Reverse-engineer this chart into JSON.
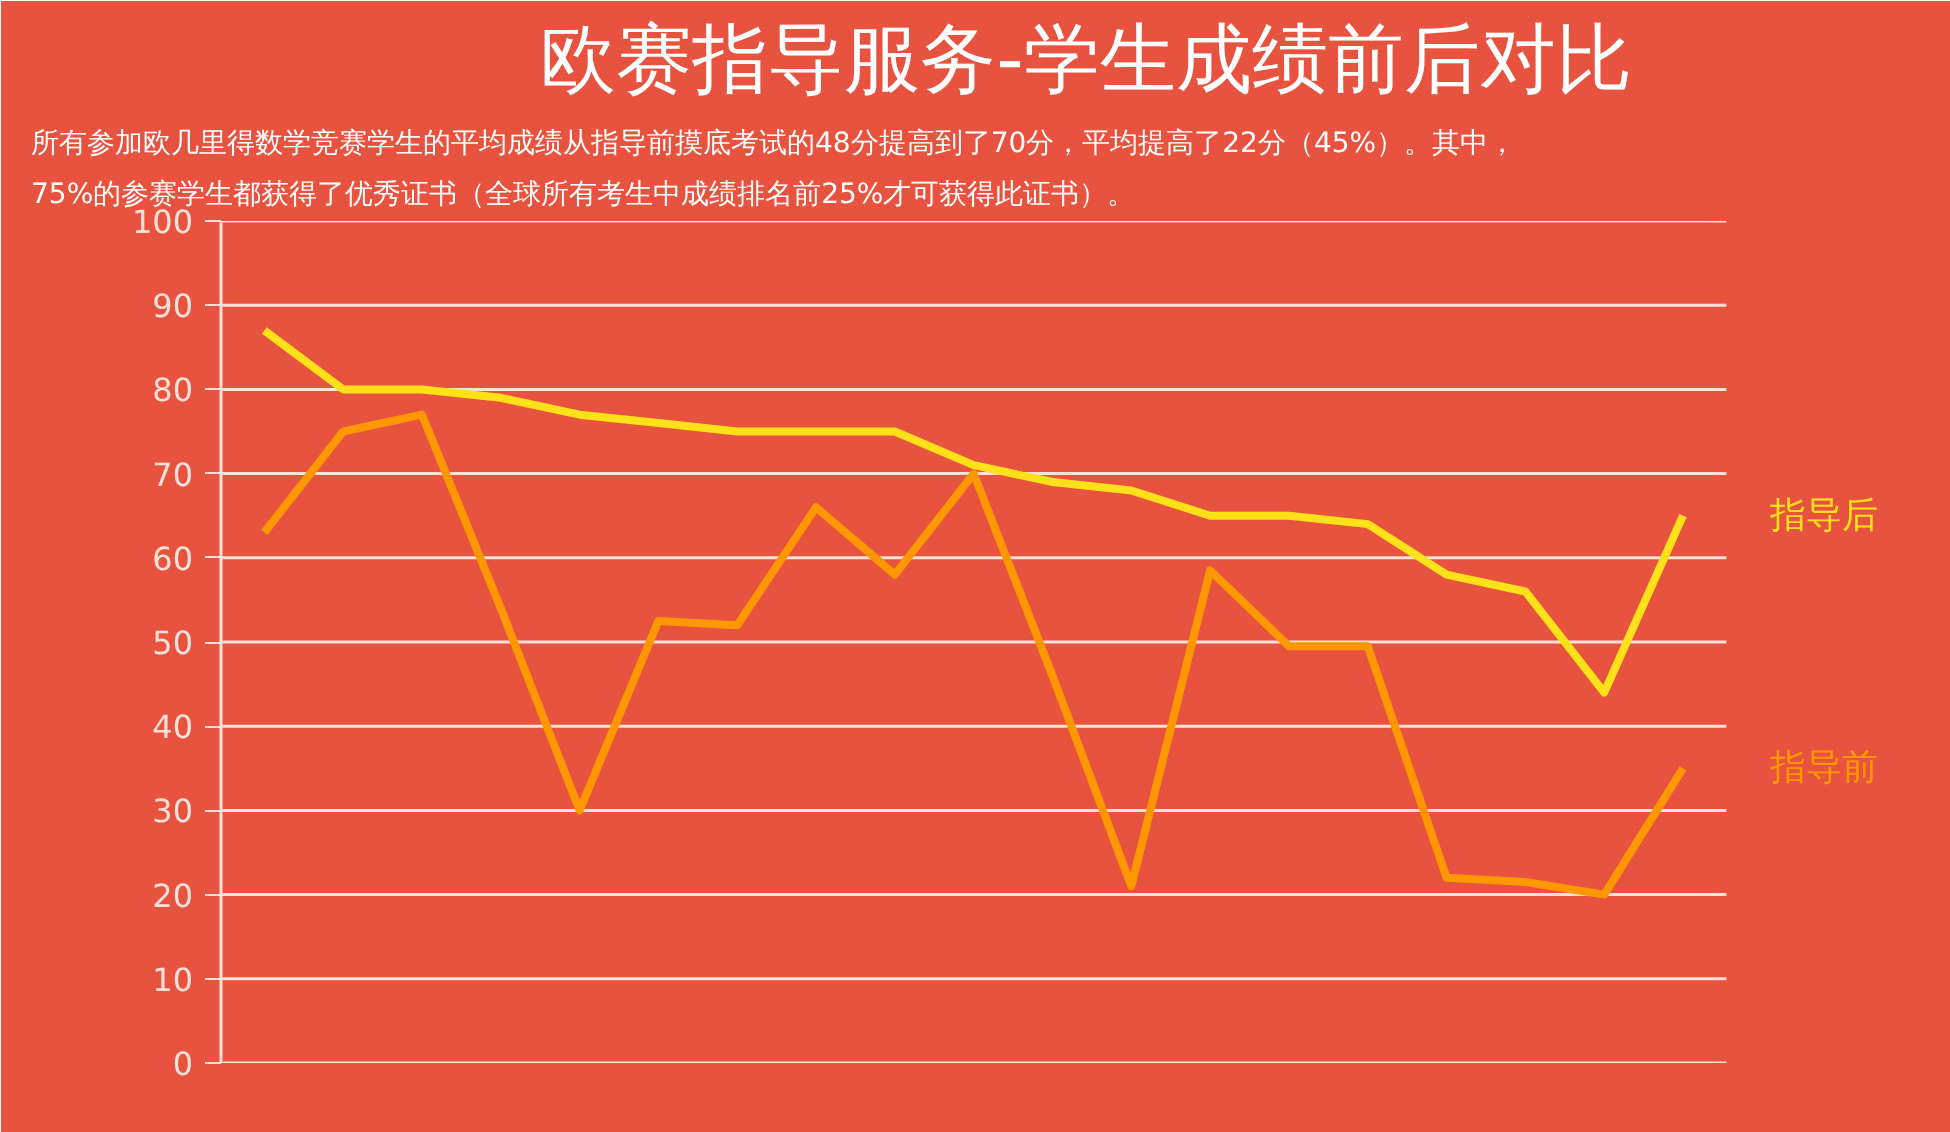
{
  "chart_data": {
    "type": "line",
    "title": "欧赛指导服务-学生成绩前后对比",
    "subtitle": "所有参加欧几里得数学竞赛学生的平均成绩从指导前摸底考试的48分提高到了70分，平均提高了22分（45%）。其中，\n75%的参赛学生都获得了优秀证书（全球所有考生中成绩排名前25%才可获得此证书）。",
    "categories": [
      null,
      null,
      null,
      null,
      null,
      null,
      null,
      null,
      null,
      null,
      null,
      null,
      null,
      null,
      null,
      null,
      null,
      null,
      null
    ],
    "series": [
      {
        "name": "指导后",
        "color": "#ffe11a",
        "values": [
          87,
          80,
          80,
          79,
          77,
          76,
          75,
          75,
          75,
          71,
          69,
          68,
          65,
          65,
          64,
          58,
          56,
          44,
          65
        ]
      },
      {
        "name": "指导前",
        "color": "#ff9800",
        "values": [
          63,
          75,
          77,
          54,
          30,
          52.5,
          52,
          66,
          58,
          70,
          46,
          21,
          58.5,
          49.5,
          49.5,
          22,
          21.5,
          20,
          35
        ]
      }
    ],
    "ylim": [
      0,
      100
    ],
    "yticks": [
      0,
      10,
      20,
      30,
      40,
      50,
      60,
      70,
      80,
      90,
      100
    ],
    "grid": "y",
    "tick_labels": "y",
    "line_style": "solid",
    "marker": "none"
  }
}
